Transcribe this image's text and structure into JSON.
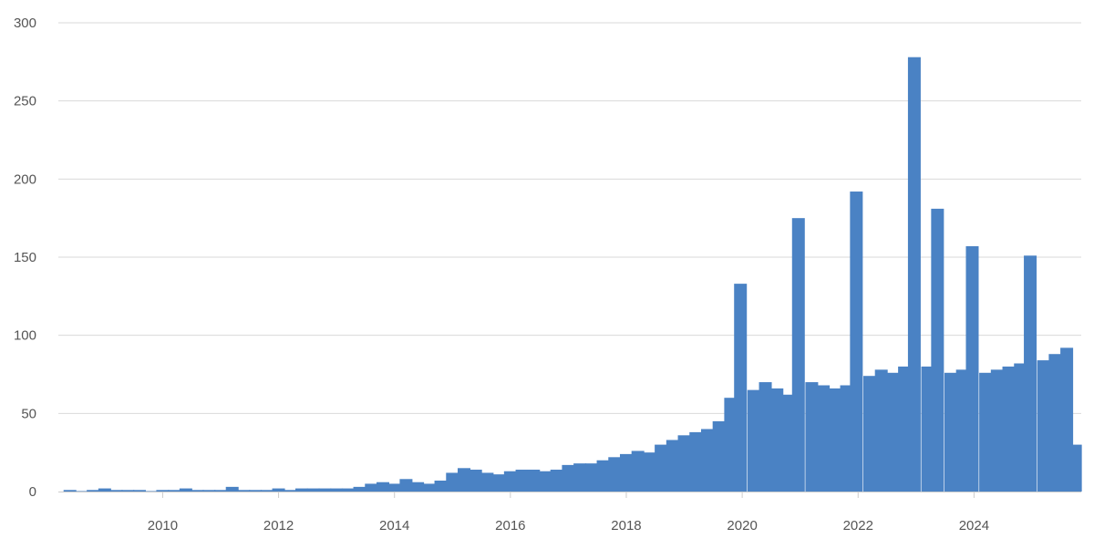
{
  "chart_data": {
    "type": "bar",
    "title": "",
    "xlabel": "",
    "ylabel": "",
    "bar_color": "#4a82c4",
    "grid": true,
    "legend": "none",
    "xlim": [
      2008.2,
      2025.85
    ],
    "ylim": [
      0,
      300
    ],
    "x_ticks": [
      "2010",
      "2012",
      "2014",
      "2016",
      "2018",
      "2020",
      "2022",
      "2024"
    ],
    "y_ticks": [
      "0",
      "50",
      "100",
      "150",
      "200",
      "250",
      "300"
    ],
    "x": [
      2008.4,
      2008.6,
      2008.8,
      2009.0,
      2009.2,
      2009.4,
      2009.6,
      2009.8,
      2010.0,
      2010.2,
      2010.4,
      2010.6,
      2010.8,
      2011.0,
      2011.2,
      2011.4,
      2011.6,
      2011.8,
      2012.0,
      2012.2,
      2012.4,
      2012.6,
      2012.8,
      2013.0,
      2013.2,
      2013.4,
      2013.6,
      2013.8,
      2014.0,
      2014.2,
      2014.4,
      2014.6,
      2014.8,
      2015.0,
      2015.2,
      2015.4,
      2015.6,
      2015.8,
      2016.0,
      2016.2,
      2016.4,
      2016.6,
      2016.8,
      2017.0,
      2017.2,
      2017.4,
      2017.6,
      2017.8,
      2018.0,
      2018.2,
      2018.4,
      2018.6,
      2018.8,
      2019.0,
      2019.2,
      2019.4,
      2019.6,
      2019.8,
      2019.97,
      2020.2,
      2020.4,
      2020.6,
      2020.8,
      2020.97,
      2021.2,
      2021.4,
      2021.6,
      2021.8,
      2021.97,
      2022.2,
      2022.4,
      2022.6,
      2022.8,
      2022.97,
      2023.2,
      2023.37,
      2023.6,
      2023.8,
      2023.97,
      2024.2,
      2024.4,
      2024.6,
      2024.8,
      2024.97,
      2025.2,
      2025.4,
      2025.6,
      2025.75
    ],
    "values": [
      1,
      0,
      1,
      2,
      1,
      1,
      1,
      0,
      1,
      1,
      2,
      1,
      1,
      1,
      3,
      1,
      1,
      1,
      2,
      1,
      2,
      2,
      2,
      2,
      2,
      3,
      5,
      6,
      5,
      8,
      6,
      5,
      7,
      12,
      15,
      14,
      12,
      11,
      13,
      14,
      14,
      13,
      14,
      17,
      18,
      18,
      20,
      22,
      24,
      26,
      25,
      30,
      33,
      36,
      38,
      40,
      45,
      60,
      133,
      65,
      70,
      66,
      62,
      175,
      70,
      68,
      66,
      68,
      192,
      74,
      78,
      76,
      80,
      278,
      80,
      181,
      76,
      78,
      157,
      76,
      78,
      80,
      82,
      151,
      84,
      88,
      92,
      30
    ]
  }
}
